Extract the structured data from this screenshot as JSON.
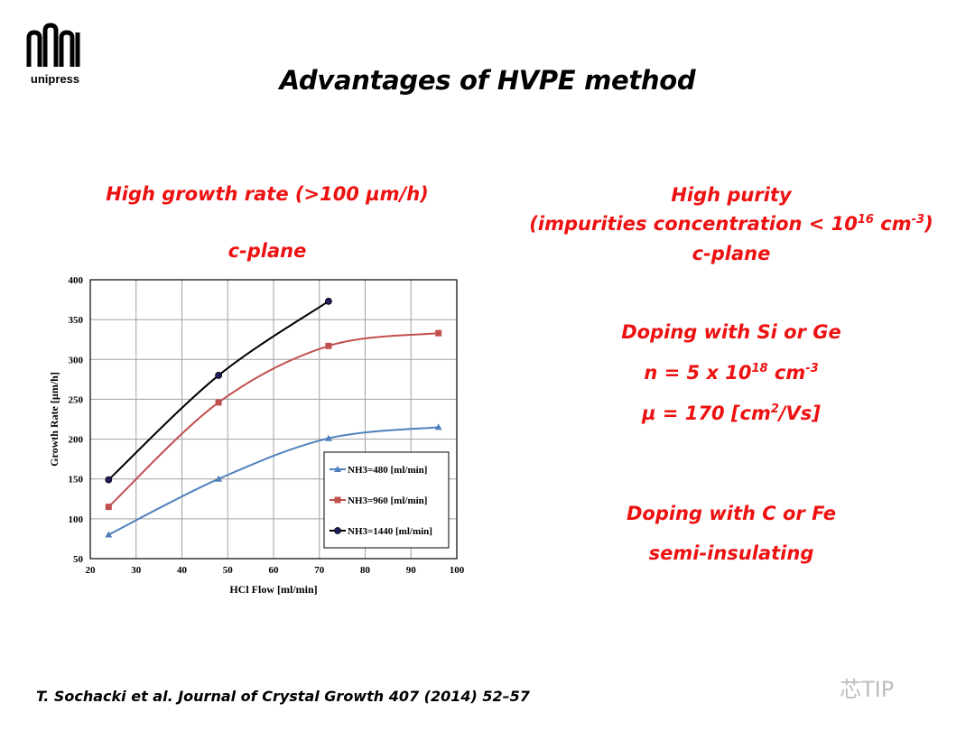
{
  "slide": {
    "logo_text": "unipress",
    "title": "Advantages of HVPE method",
    "left_col": {
      "line1": "High growth rate (>100 µm/h)",
      "line2": "c-plane"
    },
    "right_col": {
      "purity_title": "High purity",
      "purity_detail_pre": "(impurities concentration < 10",
      "purity_detail_sup": "16",
      "purity_detail_mid": " cm",
      "purity_detail_sup2": "-3",
      "purity_detail_post": ")",
      "purity_plane": "c-plane",
      "doping1_title": "Doping with Si or Ge",
      "doping1_n_pre": "n = 5 x 10",
      "doping1_n_sup": "18",
      "doping1_n_mid": " cm",
      "doping1_n_sup2": "-3",
      "doping1_mu_pre": "µ = 170 [cm",
      "doping1_mu_sup": "2",
      "doping1_mu_post": "/Vs]",
      "doping2_title": "Doping with C or Fe",
      "doping2_detail": "semi-insulating"
    },
    "citation": "T. Sochacki et al. Journal of Crystal Growth 407 (2014) 52–57",
    "watermark": "芯TIP",
    "colors": {
      "accent_red": "#ee1111",
      "series_blue": "#4f81bd",
      "series_red": "#c0504d",
      "series_black": "#000000"
    }
  },
  "chart_data": {
    "type": "line",
    "title": "",
    "xlabel": "HCl Flow [ml/min]",
    "ylabel": "Growth Rate [µm/h]",
    "xlim": [
      20,
      100
    ],
    "ylim": [
      50,
      400
    ],
    "xticks": [
      20,
      30,
      40,
      50,
      60,
      70,
      80,
      90,
      100
    ],
    "yticks": [
      50,
      100,
      150,
      200,
      250,
      300,
      350,
      400
    ],
    "grid": true,
    "legend_position": "lower-right",
    "series": [
      {
        "name": "NH3=480 [ml/min]",
        "color": "#4f81bd",
        "marker": "triangle",
        "x": [
          24,
          48,
          72,
          96
        ],
        "y": [
          80,
          150,
          201,
          215
        ]
      },
      {
        "name": "NH3=960 [ml/min]",
        "color": "#c0504d",
        "marker": "square",
        "x": [
          24,
          48,
          72,
          96
        ],
        "y": [
          115,
          246,
          317,
          333
        ]
      },
      {
        "name": "NH3=1440 [ml/min]",
        "color": "#000000",
        "marker": "circle",
        "x": [
          24,
          48,
          72
        ],
        "y": [
          149,
          280,
          373
        ]
      }
    ]
  }
}
